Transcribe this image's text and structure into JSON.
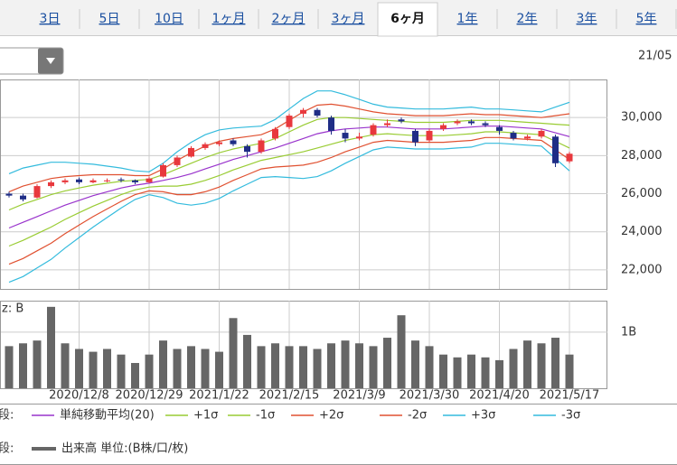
{
  "tabs": [
    "3日",
    "5日",
    "10日",
    "1ヶ月",
    "2ヶ月",
    "3ヶ月",
    "6ヶ月",
    "1年",
    "2年",
    "3年",
    "5年"
  ],
  "selected_tab": 6,
  "date_label": "21/05",
  "chart_data": {
    "type": "candlestick",
    "categories": [
      null,
      null,
      null,
      null,
      null,
      "2020/12/8",
      null,
      null,
      null,
      null,
      "2020/12/29",
      null,
      null,
      null,
      null,
      "2021/1/22",
      null,
      null,
      null,
      null,
      "2021/2/15",
      null,
      null,
      null,
      null,
      "2021/3/9",
      null,
      null,
      null,
      null,
      "2021/3/30",
      null,
      null,
      null,
      null,
      "2021/4/20",
      null,
      null,
      null,
      null,
      "2021/5/17"
    ],
    "ohlc": [
      [
        26000,
        26100,
        25800,
        25900
      ],
      [
        25900,
        26000,
        25600,
        25700
      ],
      [
        25800,
        26500,
        25750,
        26400
      ],
      [
        26400,
        26700,
        26300,
        26600
      ],
      [
        26600,
        26800,
        26500,
        26700
      ],
      [
        26750,
        26850,
        26500,
        26600
      ],
      [
        26600,
        26800,
        26550,
        26700
      ],
      [
        26650,
        26800,
        26600,
        26700
      ],
      [
        26750,
        26850,
        26600,
        26700
      ],
      [
        26700,
        26750,
        26500,
        26600
      ],
      [
        26600,
        26900,
        26550,
        26800
      ],
      [
        26900,
        27600,
        26850,
        27500
      ],
      [
        27500,
        28000,
        27400,
        27900
      ],
      [
        27950,
        28500,
        27900,
        28400
      ],
      [
        28400,
        28700,
        28300,
        28600
      ],
      [
        28600,
        28800,
        28500,
        28700
      ],
      [
        28800,
        28900,
        28500,
        28600
      ],
      [
        28500,
        28600,
        27900,
        28200
      ],
      [
        28200,
        28900,
        28100,
        28800
      ],
      [
        28900,
        29500,
        28800,
        29400
      ],
      [
        29500,
        30200,
        29400,
        30100
      ],
      [
        30200,
        30500,
        30000,
        30400
      ],
      [
        30400,
        30500,
        30000,
        30100
      ],
      [
        30000,
        30100,
        29100,
        29300
      ],
      [
        29200,
        29400,
        28700,
        28900
      ],
      [
        28900,
        29200,
        28800,
        29000
      ],
      [
        29100,
        29700,
        29000,
        29600
      ],
      [
        29600,
        29900,
        29500,
        29700
      ],
      [
        29900,
        30000,
        29700,
        29800
      ],
      [
        29300,
        29400,
        28500,
        28700
      ],
      [
        28800,
        29400,
        28700,
        29300
      ],
      [
        29400,
        29700,
        29300,
        29600
      ],
      [
        29700,
        29900,
        29600,
        29800
      ],
      [
        29800,
        29900,
        29600,
        29700
      ],
      [
        29700,
        29800,
        29500,
        29600
      ],
      [
        29500,
        29600,
        29100,
        29300
      ],
      [
        29200,
        29300,
        28800,
        28900
      ],
      [
        28900,
        29100,
        28800,
        29000
      ],
      [
        29000,
        29400,
        28900,
        29300
      ],
      [
        29000,
        29100,
        27400,
        27600
      ],
      [
        27700,
        28200,
        27600,
        28100
      ]
    ],
    "up_color": "#e8383d",
    "down_color": "#1f2d86",
    "series": [
      {
        "name": "単純移動平均(20)",
        "color": "#9933cc",
        "values": [
          24200,
          24500,
          24800,
          25100,
          25400,
          25650,
          25900,
          26100,
          26300,
          26450,
          26550,
          26700,
          26850,
          27050,
          27300,
          27550,
          27800,
          28000,
          28200,
          28400,
          28650,
          28900,
          29150,
          29300,
          29400,
          29450,
          29500,
          29500,
          29450,
          29400,
          29400,
          29400,
          29450,
          29500,
          29550,
          29550,
          29500,
          29450,
          29400,
          29200,
          29000
        ]
      },
      {
        "name": "+1σ",
        "color": "#99cc33",
        "values": [
          25150,
          25450,
          25700,
          25950,
          26150,
          26300,
          26450,
          26550,
          26650,
          26700,
          26750,
          27000,
          27300,
          27600,
          27900,
          28150,
          28350,
          28500,
          28650,
          28900,
          29250,
          29600,
          29900,
          30000,
          30000,
          29950,
          29900,
          29850,
          29800,
          29750,
          29750,
          29750,
          29800,
          29850,
          29850,
          29850,
          29800,
          29750,
          29700,
          29650,
          29600
        ]
      },
      {
        "name": "-1σ",
        "color": "#99cc33",
        "values": [
          23250,
          23550,
          23900,
          24250,
          24650,
          25000,
          25350,
          25650,
          25950,
          26200,
          26350,
          26400,
          26400,
          26500,
          26700,
          26950,
          27250,
          27500,
          27750,
          27900,
          28050,
          28200,
          28400,
          28600,
          28800,
          28950,
          29100,
          29150,
          29100,
          29050,
          29050,
          29050,
          29100,
          29150,
          29250,
          29250,
          29200,
          29150,
          29100,
          28750,
          28400
        ]
      },
      {
        "name": "+2σ",
        "color": "#e05030",
        "values": [
          26100,
          26400,
          26600,
          26800,
          26900,
          26950,
          27000,
          27000,
          27000,
          26950,
          26950,
          27300,
          27750,
          28150,
          28500,
          28750,
          28900,
          29000,
          29100,
          29400,
          29850,
          30300,
          30650,
          30700,
          30600,
          30450,
          30300,
          30200,
          30150,
          30100,
          30100,
          30100,
          30150,
          30200,
          30150,
          30150,
          30100,
          30050,
          30000,
          30100,
          30200
        ]
      },
      {
        "name": "-2σ",
        "color": "#e05030",
        "values": [
          22300,
          22600,
          23000,
          23400,
          23900,
          24350,
          24800,
          25200,
          25600,
          25950,
          26150,
          26100,
          25950,
          25950,
          26100,
          26350,
          26700,
          27000,
          27300,
          27400,
          27450,
          27500,
          27650,
          27900,
          28200,
          28450,
          28700,
          28800,
          28750,
          28700,
          28700,
          28700,
          28750,
          28800,
          28950,
          28950,
          28900,
          28850,
          28800,
          28300,
          27800
        ]
      },
      {
        "name": "+3σ",
        "color": "#33bbdd",
        "values": [
          27050,
          27350,
          27500,
          27650,
          27650,
          27600,
          27550,
          27450,
          27350,
          27200,
          27150,
          27600,
          28200,
          28700,
          29100,
          29350,
          29450,
          29500,
          29550,
          29900,
          30450,
          31000,
          31400,
          31400,
          31200,
          30950,
          30700,
          30550,
          30500,
          30450,
          30450,
          30450,
          30500,
          30550,
          30450,
          30450,
          30400,
          30350,
          30300,
          30550,
          30800
        ]
      },
      {
        "name": "-3σ",
        "color": "#33bbdd",
        "values": [
          21350,
          21650,
          22100,
          22550,
          23150,
          23700,
          24250,
          24750,
          25250,
          25700,
          25950,
          25800,
          25500,
          25400,
          25500,
          25750,
          26150,
          26500,
          26850,
          26900,
          26850,
          26800,
          26900,
          27200,
          27600,
          27950,
          28300,
          28450,
          28400,
          28350,
          28350,
          28350,
          28400,
          28450,
          28650,
          28650,
          28600,
          28550,
          28500,
          27850,
          27200
        ]
      }
    ],
    "ylim": [
      21000,
      32000
    ],
    "yticks": [
      {
        "value": 22000,
        "label": "22,000"
      },
      {
        "value": 24000,
        "label": "24,000"
      },
      {
        "value": 26000,
        "label": "26,000"
      },
      {
        "value": 28000,
        "label": "28,000"
      },
      {
        "value": 30000,
        "label": "30,000"
      }
    ],
    "grid": true,
    "legend_prefix": "段:",
    "volume": {
      "label": "z: B",
      "name": "出来高 単位:(B株/口/枚)",
      "color": "#666666",
      "values": [
        0.75,
        0.8,
        0.85,
        1.45,
        0.8,
        0.7,
        0.65,
        0.7,
        0.6,
        0.45,
        0.6,
        0.85,
        0.7,
        0.75,
        0.7,
        0.65,
        1.25,
        0.95,
        0.75,
        0.8,
        0.75,
        0.75,
        0.7,
        0.8,
        0.85,
        0.8,
        0.75,
        0.9,
        1.3,
        0.85,
        0.75,
        0.6,
        0.55,
        0.6,
        0.55,
        0.5,
        0.7,
        0.85,
        0.8,
        0.9,
        0.6
      ],
      "ylim": [
        0,
        1.56
      ],
      "yticks": [
        {
          "value": 1,
          "label": "1B"
        }
      ]
    }
  }
}
